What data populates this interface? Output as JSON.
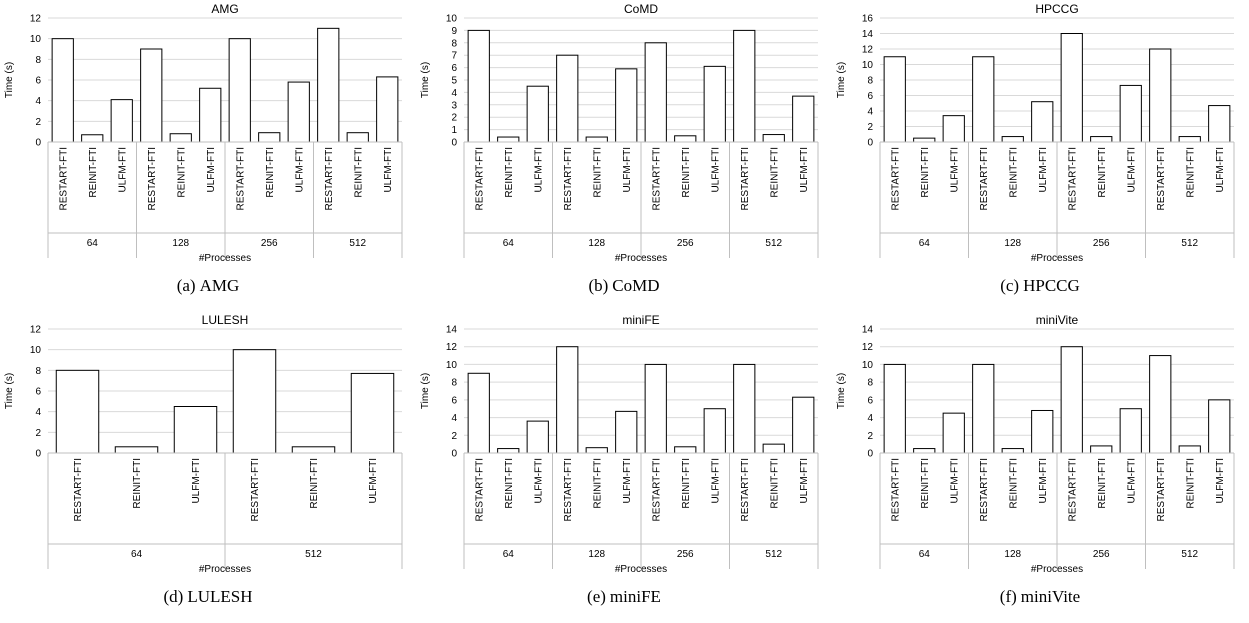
{
  "chart_data": [
    {
      "type": "bar",
      "title": "AMG",
      "caption_label": "(a)",
      "caption_text": "AMG",
      "xlabel": "#Processes",
      "ylabel": "Time (s)",
      "ylim": [
        0,
        12
      ],
      "yticks": [
        0,
        2,
        4,
        6,
        8,
        10,
        12
      ],
      "groups": [
        "64",
        "128",
        "256",
        "512"
      ],
      "categories": [
        "RESTART-FTI",
        "REINIT-FTI",
        "ULFM-FTI"
      ],
      "values": [
        [
          10,
          0.7,
          4.1
        ],
        [
          9,
          0.8,
          5.2
        ],
        [
          10,
          0.9,
          5.8
        ],
        [
          11,
          0.9,
          6.3
        ]
      ],
      "grid": true
    },
    {
      "type": "bar",
      "title": "CoMD",
      "caption_label": "(b)",
      "caption_text": "CoMD",
      "xlabel": "#Processes",
      "ylabel": "Time (s)",
      "ylim": [
        0,
        10
      ],
      "yticks": [
        0,
        1,
        2,
        3,
        4,
        5,
        6,
        7,
        8,
        9,
        10
      ],
      "groups": [
        "64",
        "128",
        "256",
        "512"
      ],
      "categories": [
        "RESTART-FTI",
        "REINIT-FTI",
        "ULFM-FTI"
      ],
      "values": [
        [
          9,
          0.4,
          4.5
        ],
        [
          7,
          0.4,
          5.9
        ],
        [
          8,
          0.5,
          6.1
        ],
        [
          9,
          0.6,
          3.7
        ]
      ],
      "grid": true
    },
    {
      "type": "bar",
      "title": "HPCCG",
      "caption_label": "(c)",
      "caption_text": "HPCCG",
      "xlabel": "#Processes",
      "ylabel": "Time (s)",
      "ylim": [
        0,
        16
      ],
      "yticks": [
        0,
        2,
        4,
        6,
        8,
        10,
        12,
        14,
        16
      ],
      "groups": [
        "64",
        "128",
        "256",
        "512"
      ],
      "categories": [
        "RESTART-FTI",
        "REINIT-FTI",
        "ULFM-FTI"
      ],
      "values": [
        [
          11,
          0.5,
          3.4
        ],
        [
          11,
          0.7,
          5.2
        ],
        [
          14,
          0.7,
          7.3
        ],
        [
          12,
          0.7,
          4.7
        ]
      ],
      "grid": true
    },
    {
      "type": "bar",
      "title": "LULESH",
      "caption_label": "(d)",
      "caption_text": "LULESH",
      "xlabel": "#Processes",
      "ylabel": "Time (s)",
      "ylim": [
        0,
        12
      ],
      "yticks": [
        0,
        2,
        4,
        6,
        8,
        10,
        12
      ],
      "groups": [
        "64",
        "512"
      ],
      "categories": [
        "RESTART-FTI",
        "REINIT-FTI",
        "ULFM-FTI"
      ],
      "values": [
        [
          8,
          0.6,
          4.5
        ],
        [
          10,
          0.6,
          7.7
        ]
      ],
      "grid": true
    },
    {
      "type": "bar",
      "title": "miniFE",
      "caption_label": "(e)",
      "caption_text": "miniFE",
      "xlabel": "#Processes",
      "ylabel": "Time (s)",
      "ylim": [
        0,
        14
      ],
      "yticks": [
        0,
        2,
        4,
        6,
        8,
        10,
        12,
        14
      ],
      "groups": [
        "64",
        "128",
        "256",
        "512"
      ],
      "categories": [
        "RESTART-FTI",
        "REINIT-FTI",
        "ULFM-FTI"
      ],
      "values": [
        [
          9,
          0.5,
          3.6
        ],
        [
          12,
          0.6,
          4.7
        ],
        [
          10,
          0.7,
          5.0
        ],
        [
          10,
          1.0,
          6.3
        ]
      ],
      "grid": true
    },
    {
      "type": "bar",
      "title": "miniVite",
      "caption_label": "(f)",
      "caption_text": "miniVite",
      "xlabel": "#Processes",
      "ylabel": "Time (s)",
      "ylim": [
        0,
        14
      ],
      "yticks": [
        0,
        2,
        4,
        6,
        8,
        10,
        12,
        14
      ],
      "groups": [
        "64",
        "128",
        "256",
        "512"
      ],
      "categories": [
        "RESTART-FTI",
        "REINIT-FTI",
        "ULFM-FTI"
      ],
      "values": [
        [
          10,
          0.5,
          4.5
        ],
        [
          10,
          0.5,
          4.8
        ],
        [
          12,
          0.8,
          5.0
        ],
        [
          11,
          0.8,
          6.0
        ]
      ],
      "grid": true
    }
  ]
}
